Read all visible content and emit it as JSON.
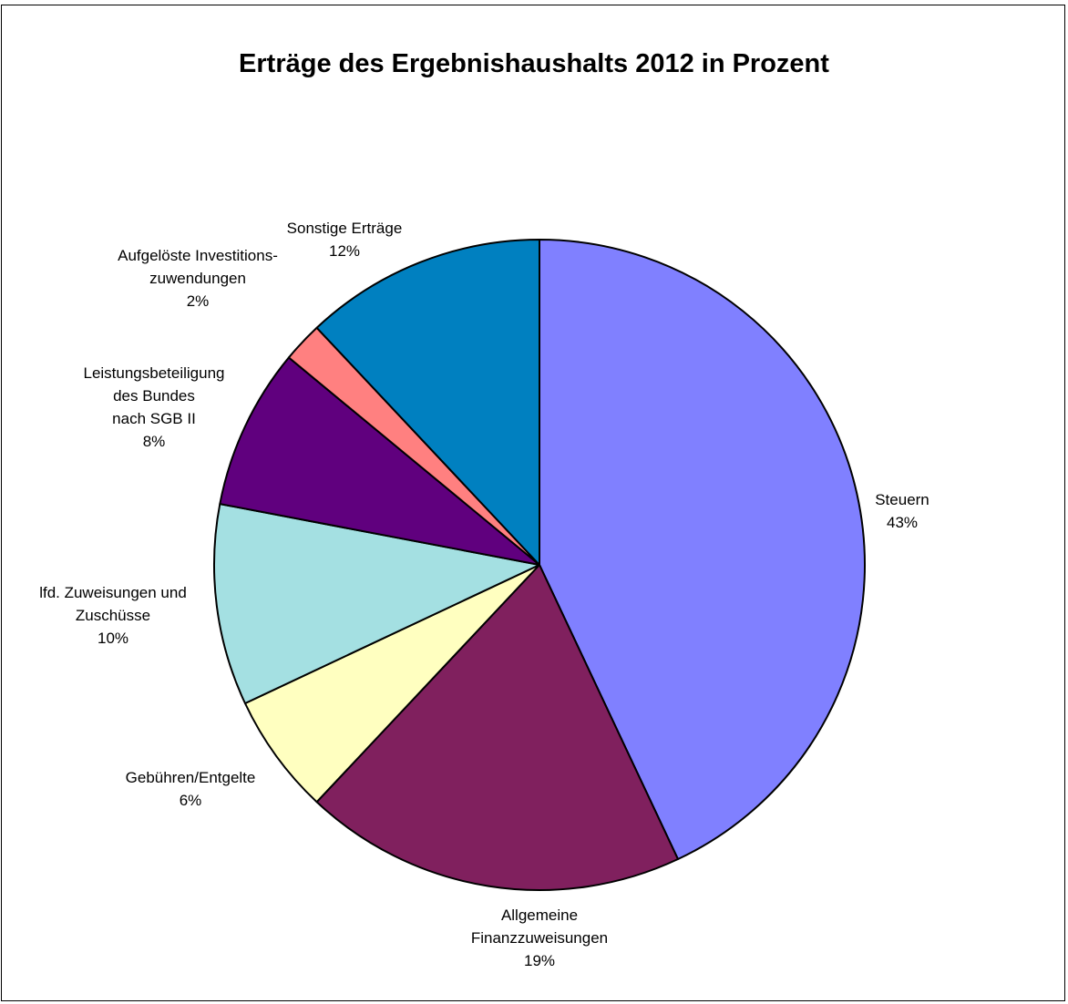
{
  "chart_data": {
    "type": "pie",
    "title": "Erträge des Ergebnishaushalts 2012 in Prozent",
    "slices": [
      {
        "name": "Steuern",
        "value": 43,
        "label": "43%",
        "color": "#8080FF"
      },
      {
        "name": "Allgemeine Finanzzuweisungen",
        "value": 19,
        "label": "19%",
        "color": "#80205E"
      },
      {
        "name": "Gebühren/Entgelte",
        "value": 6,
        "label": "6%",
        "color": "#FFFFC0"
      },
      {
        "name": "lfd. Zuweisungen und Zuschüsse",
        "value": 10,
        "label": "10%",
        "color": "#A4E0E2"
      },
      {
        "name": "Leistungsbeteiligung des Bundes nach SGB II",
        "value": 8,
        "label": "8%",
        "color": "#60007E"
      },
      {
        "name": "Aufgelöste Investitions-zuwendungen",
        "value": 2,
        "label": "2%",
        "color": "#FF8080"
      },
      {
        "name": "Sonstige Erträge",
        "value": 12,
        "label": "12%",
        "color": "#0080C0"
      }
    ],
    "start_angle_deg": 0,
    "direction": "clockwise",
    "legend": "none"
  }
}
